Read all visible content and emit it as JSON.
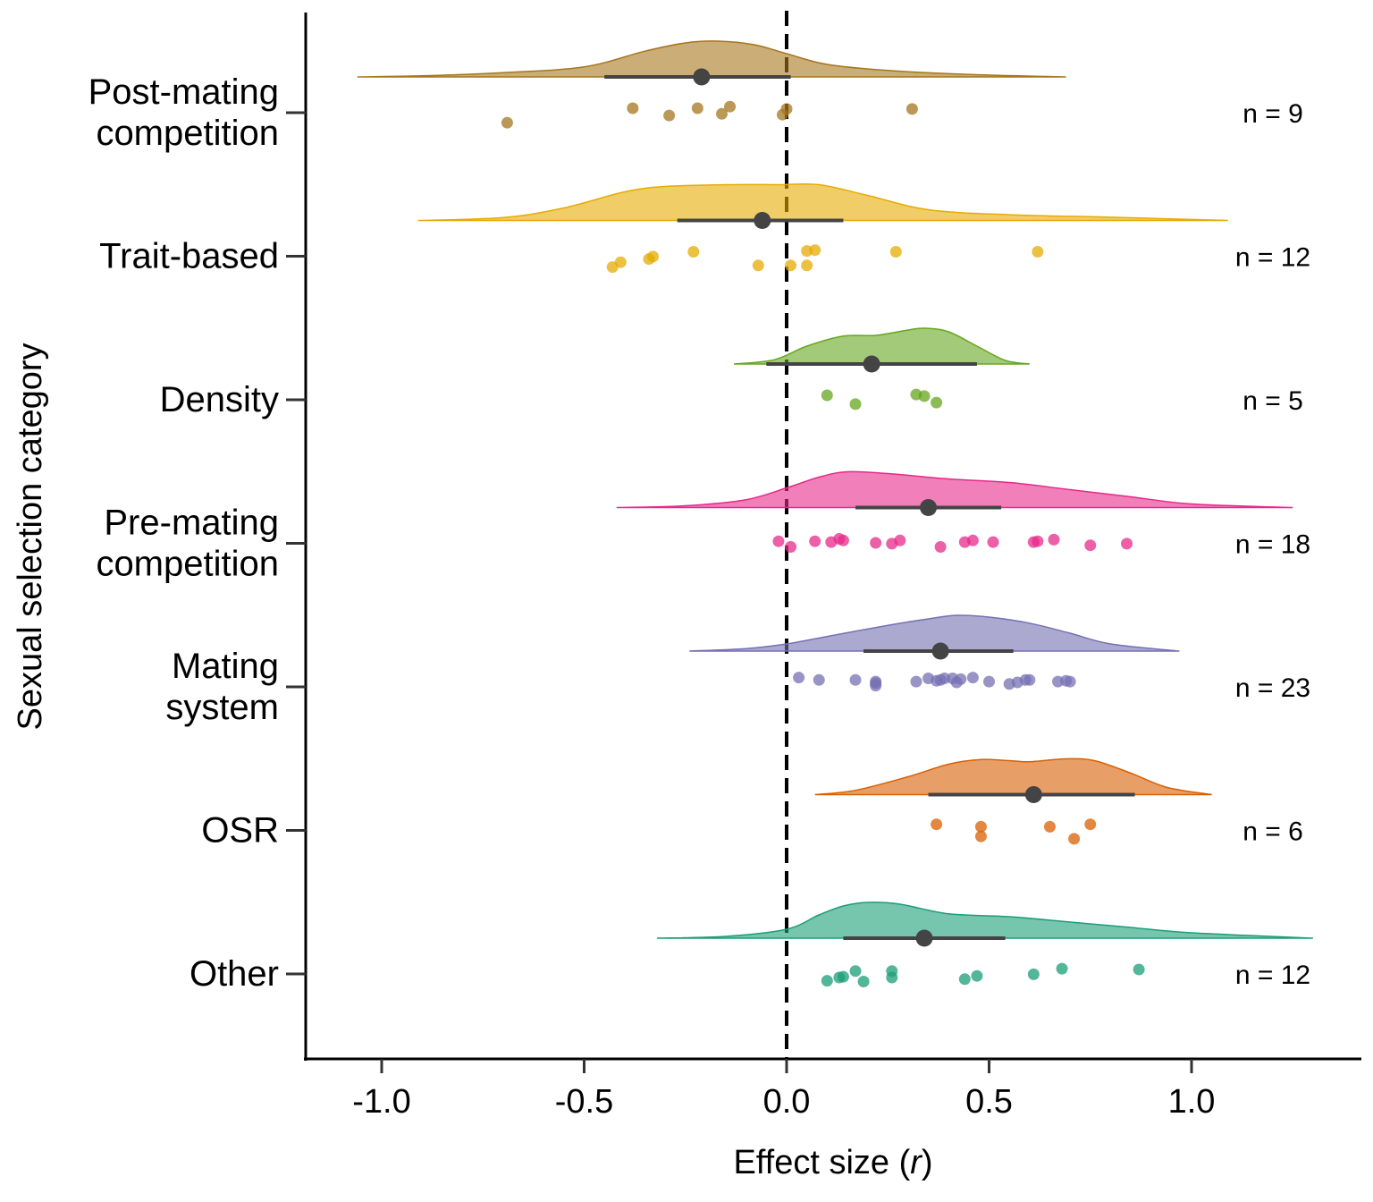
{
  "chart_data": {
    "type": "raincloud",
    "xlabel_prefix": "Effect size (",
    "xlabel_var": "r",
    "xlabel_suffix": ")",
    "ylabel": "Sexual selection category",
    "xlim": [
      -1.2,
      1.42
    ],
    "xticks": [
      {
        "value": -1.0,
        "label": "-1.0"
      },
      {
        "value": -0.5,
        "label": "-0.5"
      },
      {
        "value": 0.0,
        "label": "0.0"
      },
      {
        "value": 0.5,
        "label": "0.5"
      },
      {
        "value": 1.0,
        "label": "1.0"
      }
    ],
    "reference_line": 0,
    "categories": [
      {
        "key": "post-mating-competition",
        "label_lines": [
          "Post-mating",
          "competition"
        ],
        "n_label": "n = 9",
        "color": "#A6761D",
        "mean": -0.21,
        "ci": [
          -0.45,
          0.01
        ],
        "density_range": [
          -1.06,
          0.69
        ],
        "density": [
          [
            -1.06,
            0.0
          ],
          [
            -0.9,
            0.03
          ],
          [
            -0.7,
            0.12
          ],
          [
            -0.5,
            0.28
          ],
          [
            -0.35,
            0.72
          ],
          [
            -0.25,
            0.95
          ],
          [
            -0.17,
            1.0
          ],
          [
            -0.08,
            0.9
          ],
          [
            0.0,
            0.65
          ],
          [
            0.1,
            0.35
          ],
          [
            0.25,
            0.18
          ],
          [
            0.45,
            0.07
          ],
          [
            0.69,
            0.0
          ]
        ],
        "points": [
          [
            -0.38,
            0.5
          ],
          [
            -0.22,
            0.5
          ],
          [
            -0.14,
            0.4
          ],
          [
            0.0,
            0.55
          ],
          [
            0.31,
            0.55
          ],
          [
            -0.29,
            0.95
          ],
          [
            -0.16,
            0.85
          ],
          [
            -0.01,
            0.9
          ],
          [
            -0.69,
            1.4
          ]
        ]
      },
      {
        "key": "trait-based",
        "label_lines": [
          "Trait-based"
        ],
        "n_label": "n = 12",
        "color": "#E6AB02",
        "mean": -0.06,
        "ci": [
          -0.27,
          0.14
        ],
        "density_range": [
          -0.91,
          1.09
        ],
        "density": [
          [
            -0.91,
            0.0
          ],
          [
            -0.7,
            0.08
          ],
          [
            -0.55,
            0.35
          ],
          [
            -0.4,
            0.8
          ],
          [
            -0.3,
            0.95
          ],
          [
            -0.15,
            1.0
          ],
          [
            -0.02,
            1.0
          ],
          [
            0.08,
            1.0
          ],
          [
            0.2,
            0.7
          ],
          [
            0.35,
            0.3
          ],
          [
            0.55,
            0.16
          ],
          [
            0.8,
            0.09
          ],
          [
            1.09,
            0.0
          ]
        ],
        "points": [
          [
            -0.23,
            0.5
          ],
          [
            0.05,
            0.45
          ],
          [
            0.07,
            0.4
          ],
          [
            0.27,
            0.5
          ],
          [
            0.62,
            0.5
          ],
          [
            -0.33,
            0.8
          ],
          [
            -0.34,
            0.95
          ],
          [
            -0.41,
            1.15
          ],
          [
            -0.43,
            1.45
          ],
          [
            -0.07,
            1.35
          ],
          [
            0.01,
            1.35
          ],
          [
            0.05,
            1.35
          ]
        ]
      },
      {
        "key": "density",
        "label_lines": [
          "Density"
        ],
        "n_label": "n = 5",
        "color": "#66A61E",
        "mean": 0.21,
        "ci": [
          -0.05,
          0.47
        ],
        "density_range": [
          -0.13,
          0.6
        ],
        "density": [
          [
            -0.13,
            0.0
          ],
          [
            -0.03,
            0.12
          ],
          [
            0.05,
            0.5
          ],
          [
            0.14,
            0.78
          ],
          [
            0.22,
            0.8
          ],
          [
            0.3,
            0.95
          ],
          [
            0.34,
            1.0
          ],
          [
            0.4,
            0.9
          ],
          [
            0.47,
            0.5
          ],
          [
            0.54,
            0.1
          ],
          [
            0.6,
            0.0
          ]
        ],
        "points": [
          [
            0.1,
            0.5
          ],
          [
            0.32,
            0.45
          ],
          [
            0.34,
            0.55
          ],
          [
            0.17,
            1.05
          ],
          [
            0.37,
            0.95
          ]
        ]
      },
      {
        "key": "pre-mating-competition",
        "label_lines": [
          "Pre-mating",
          "competition"
        ],
        "n_label": "n = 18",
        "color": "#E7298A",
        "mean": 0.35,
        "ci": [
          0.17,
          0.53
        ],
        "density_range": [
          -0.42,
          1.25
        ],
        "density": [
          [
            -0.42,
            0.0
          ],
          [
            -0.25,
            0.05
          ],
          [
            -0.1,
            0.22
          ],
          [
            0.0,
            0.55
          ],
          [
            0.08,
            0.85
          ],
          [
            0.15,
            1.0
          ],
          [
            0.25,
            0.95
          ],
          [
            0.4,
            0.8
          ],
          [
            0.55,
            0.7
          ],
          [
            0.7,
            0.5
          ],
          [
            0.85,
            0.3
          ],
          [
            1.0,
            0.1
          ],
          [
            1.25,
            0.0
          ]
        ],
        "points": [
          [
            0.13,
            0.5
          ],
          [
            0.14,
            0.6
          ],
          [
            0.28,
            0.6
          ],
          [
            0.46,
            0.6
          ],
          [
            0.66,
            0.55
          ],
          [
            -0.02,
            0.65
          ],
          [
            0.07,
            0.65
          ],
          [
            0.11,
            0.7
          ],
          [
            0.22,
            0.75
          ],
          [
            0.26,
            0.8
          ],
          [
            0.44,
            0.7
          ],
          [
            0.51,
            0.7
          ],
          [
            0.61,
            0.7
          ],
          [
            0.62,
            0.65
          ],
          [
            0.75,
            0.9
          ],
          [
            0.84,
            0.8
          ],
          [
            0.01,
            1.0
          ],
          [
            0.38,
            1.0
          ]
        ]
      },
      {
        "key": "mating-system",
        "label_lines": [
          "Mating",
          "system"
        ],
        "n_label": "n = 23",
        "color": "#7570B3",
        "mean": 0.38,
        "ci": [
          0.19,
          0.56
        ],
        "density_range": [
          -0.24,
          0.97
        ],
        "density": [
          [
            -0.24,
            0.0
          ],
          [
            -0.1,
            0.07
          ],
          [
            0.0,
            0.2
          ],
          [
            0.12,
            0.45
          ],
          [
            0.25,
            0.72
          ],
          [
            0.35,
            0.9
          ],
          [
            0.42,
            1.0
          ],
          [
            0.5,
            0.95
          ],
          [
            0.6,
            0.78
          ],
          [
            0.7,
            0.5
          ],
          [
            0.8,
            0.2
          ],
          [
            0.97,
            0.0
          ]
        ],
        "points": [
          [
            0.03,
            0.2
          ],
          [
            0.35,
            0.25
          ],
          [
            0.39,
            0.25
          ],
          [
            0.41,
            0.25
          ],
          [
            0.46,
            0.2
          ],
          [
            0.08,
            0.35
          ],
          [
            0.17,
            0.35
          ],
          [
            0.6,
            0.35
          ],
          [
            0.38,
            0.35
          ],
          [
            0.43,
            0.3
          ],
          [
            0.59,
            0.35
          ],
          [
            0.22,
            0.45
          ],
          [
            0.32,
            0.45
          ],
          [
            0.37,
            0.4
          ],
          [
            0.42,
            0.5
          ],
          [
            0.5,
            0.45
          ],
          [
            0.57,
            0.5
          ],
          [
            0.67,
            0.45
          ],
          [
            0.69,
            0.4
          ],
          [
            0.7,
            0.45
          ],
          [
            0.22,
            0.55
          ],
          [
            0.55,
            0.6
          ],
          [
            0.22,
            0.7
          ]
        ]
      },
      {
        "key": "osr",
        "label_lines": [
          "OSR"
        ],
        "n_label": "n = 6",
        "color": "#D95F02",
        "mean": 0.61,
        "ci": [
          0.35,
          0.86
        ],
        "density_range": [
          0.07,
          1.05
        ],
        "density": [
          [
            0.07,
            0.0
          ],
          [
            0.17,
            0.12
          ],
          [
            0.3,
            0.5
          ],
          [
            0.4,
            0.85
          ],
          [
            0.48,
            0.98
          ],
          [
            0.55,
            0.95
          ],
          [
            0.6,
            0.92
          ],
          [
            0.69,
            1.0
          ],
          [
            0.76,
            0.95
          ],
          [
            0.85,
            0.6
          ],
          [
            0.94,
            0.2
          ],
          [
            1.05,
            0.0
          ]
        ],
        "points": [
          [
            0.37,
            0.4
          ],
          [
            0.48,
            0.55
          ],
          [
            0.65,
            0.55
          ],
          [
            0.75,
            0.4
          ],
          [
            0.48,
            1.15
          ],
          [
            0.71,
            1.3
          ]
        ]
      },
      {
        "key": "other",
        "label_lines": [
          "Other"
        ],
        "n_label": "n = 12",
        "color": "#1B9E77",
        "mean": 0.34,
        "ci": [
          0.14,
          0.54
        ],
        "density_range": [
          -0.32,
          1.3
        ],
        "density": [
          [
            -0.32,
            0.0
          ],
          [
            -0.15,
            0.05
          ],
          [
            0.0,
            0.25
          ],
          [
            0.08,
            0.65
          ],
          [
            0.14,
            0.9
          ],
          [
            0.2,
            1.0
          ],
          [
            0.28,
            0.95
          ],
          [
            0.4,
            0.68
          ],
          [
            0.55,
            0.6
          ],
          [
            0.7,
            0.45
          ],
          [
            0.85,
            0.3
          ],
          [
            1.0,
            0.15
          ],
          [
            1.3,
            0.0
          ]
        ],
        "points": [
          [
            0.17,
            0.6
          ],
          [
            0.26,
            0.6
          ],
          [
            0.68,
            0.45
          ],
          [
            0.87,
            0.5
          ],
          [
            0.61,
            0.8
          ],
          [
            0.47,
            0.9
          ],
          [
            0.13,
            1.0
          ],
          [
            0.14,
            0.95
          ],
          [
            0.26,
            1.0
          ],
          [
            0.44,
            1.1
          ],
          [
            0.1,
            1.2
          ],
          [
            0.19,
            1.25
          ]
        ]
      }
    ]
  }
}
